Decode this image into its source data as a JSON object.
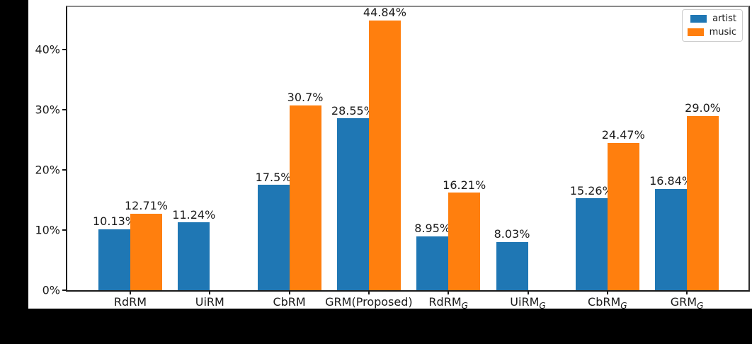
{
  "chart_data": {
    "type": "bar",
    "title": "",
    "xlabel": "",
    "ylabel": "",
    "ylim": [
      0,
      47
    ],
    "grid": false,
    "legend_position": "upper right",
    "background_color": "#000000",
    "figure_color": "#ffffff",
    "y_ticks": [
      {
        "value": 0,
        "label": "0%"
      },
      {
        "value": 10,
        "label": "10%"
      },
      {
        "value": 20,
        "label": "20%"
      },
      {
        "value": 30,
        "label": "30%"
      },
      {
        "value": 40,
        "label": "40%"
      }
    ],
    "categories": [
      {
        "label": "RdRM",
        "sub": ""
      },
      {
        "label": "UiRM",
        "sub": ""
      },
      {
        "label": "CbRM",
        "sub": ""
      },
      {
        "label": "GRM(Proposed)",
        "sub": ""
      },
      {
        "label": "RdRM",
        "sub": "G"
      },
      {
        "label": "UiRM",
        "sub": "G"
      },
      {
        "label": "CbRM",
        "sub": "G"
      },
      {
        "label": "GRM",
        "sub": "G"
      }
    ],
    "series": [
      {
        "name": "artist",
        "color": "#1f77b4",
        "values": [
          10.13,
          11.24,
          17.5,
          28.55,
          8.95,
          8.03,
          15.26,
          16.84
        ],
        "value_labels": [
          "10.13%",
          "11.24%",
          "17.5%",
          "28.55%",
          "8.95%",
          "8.03%",
          "15.26%",
          "16.84%"
        ]
      },
      {
        "name": "music",
        "color": "#ff7f0e",
        "values": [
          12.71,
          null,
          30.7,
          44.84,
          16.21,
          null,
          24.47,
          29.0
        ],
        "value_labels": [
          "12.71%",
          null,
          "30.7%",
          "44.84%",
          "16.21%",
          null,
          "24.47%",
          "29.0%"
        ]
      }
    ]
  }
}
